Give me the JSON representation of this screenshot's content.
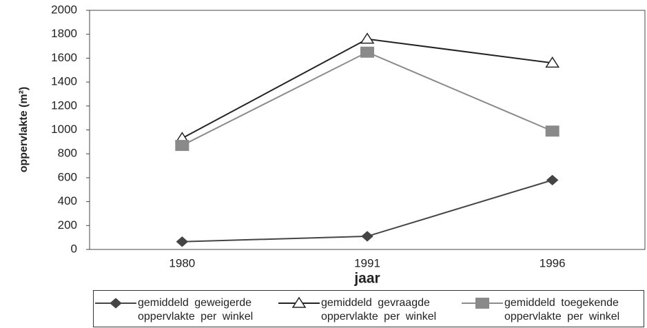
{
  "chart_data": {
    "type": "line",
    "categories": [
      "1980",
      "1991",
      "1996"
    ],
    "series": [
      {
        "name": "gemiddeld geweigerde oppervlakte per winkel",
        "color": "#444",
        "marker": "diamond",
        "values": [
          65,
          110,
          580
        ]
      },
      {
        "name": "gemiddeld gevraagde oppervlakte per winkel",
        "color": "#222",
        "marker": "triangle",
        "values": [
          930,
          1760,
          1560
        ]
      },
      {
        "name": "gemiddeld toegekende oppervlakte per winkel",
        "color": "#8a8a8a",
        "marker": "square",
        "values": [
          870,
          1650,
          990
        ]
      }
    ],
    "ylabel": "oppervlakte (m²)",
    "xlabel": "jaar",
    "ylim": [
      0,
      2000
    ],
    "yticks": [
      0,
      200,
      400,
      600,
      800,
      1000,
      1200,
      1400,
      1600,
      1800,
      2000
    ],
    "legend": "bottom"
  }
}
